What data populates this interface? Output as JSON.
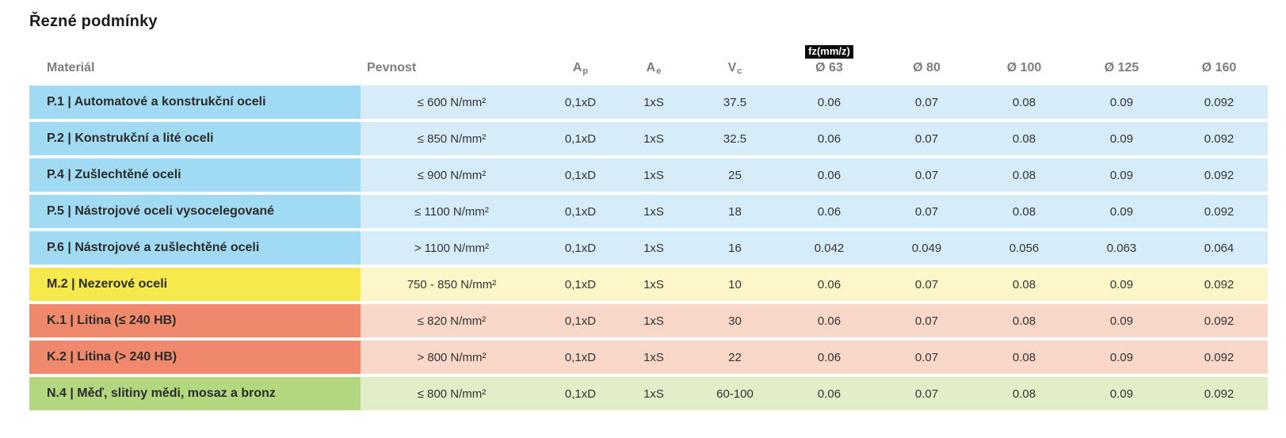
{
  "page": {
    "title": "Řezné podmínky"
  },
  "table": {
    "header": {
      "material": "Materiál",
      "pevnost": "Pevnost",
      "ap": {
        "base": "A",
        "sub": "p"
      },
      "ae": {
        "base": "A",
        "sub": "e"
      },
      "vc": {
        "base": "V",
        "sub": "c"
      },
      "fz_badge": "fz(mm/z)",
      "diameters": [
        "Ø 63",
        "Ø 80",
        "Ø 100",
        "Ø 125",
        "Ø 160"
      ]
    },
    "colors": {
      "steel": {
        "dark": "#a1dbf3",
        "light": "#d6edf9"
      },
      "stainless": {
        "dark": "#f5e94e",
        "light": "#fcf6c8"
      },
      "cast_iron": {
        "dark": "#f0896b",
        "light": "#f9d7c9"
      },
      "nonferrous": {
        "dark": "#b3d77e",
        "light": "#e1eec8"
      }
    },
    "rows": [
      {
        "group": "steel",
        "material": "P.1 | Automatové a konstrukční oceli",
        "pevnost": "≤ 600 N/mm²",
        "ap": "0,1xD",
        "ae": "1xS",
        "vc": "37.5",
        "fz": [
          "0.06",
          "0.07",
          "0.08",
          "0.09",
          "0.092"
        ]
      },
      {
        "group": "steel",
        "material": "P.2 | Konstrukční a lité oceli",
        "pevnost": "≤ 850 N/mm²",
        "ap": "0,1xD",
        "ae": "1xS",
        "vc": "32.5",
        "fz": [
          "0.06",
          "0.07",
          "0.08",
          "0.09",
          "0.092"
        ]
      },
      {
        "group": "steel",
        "material": "P.4 | Zušlechtěné oceli",
        "pevnost": "≤ 900 N/mm²",
        "ap": "0,1xD",
        "ae": "1xS",
        "vc": "25",
        "fz": [
          "0.06",
          "0.07",
          "0.08",
          "0.09",
          "0.092"
        ]
      },
      {
        "group": "steel",
        "material": "P.5 | Nástrojové oceli vysocelegované",
        "pevnost": "≤ 1100 N/mm²",
        "ap": "0,1xD",
        "ae": "1xS",
        "vc": "18",
        "fz": [
          "0.06",
          "0.07",
          "0.08",
          "0.09",
          "0.092"
        ]
      },
      {
        "group": "steel",
        "material": "P.6 | Nástrojové a zušlechtěné oceli",
        "pevnost": "> 1100 N/mm²",
        "ap": "0,1xD",
        "ae": "1xS",
        "vc": "16",
        "fz": [
          "0.042",
          "0.049",
          "0.056",
          "0.063",
          "0.064"
        ]
      },
      {
        "group": "stainless",
        "material": "M.2 | Nezerové oceli",
        "pevnost": "750 - 850 N/mm²",
        "ap": "0,1xD",
        "ae": "1xS",
        "vc": "10",
        "fz": [
          "0.06",
          "0.07",
          "0.08",
          "0.09",
          "0.092"
        ]
      },
      {
        "group": "cast_iron",
        "material": "K.1 | Litina (≤ 240 HB)",
        "pevnost": "≤ 820 N/mm²",
        "ap": "0,1xD",
        "ae": "1xS",
        "vc": "30",
        "fz": [
          "0.06",
          "0.07",
          "0.08",
          "0.09",
          "0.092"
        ]
      },
      {
        "group": "cast_iron",
        "material": "K.2 | Litina (> 240 HB)",
        "pevnost": "> 800 N/mm²",
        "ap": "0,1xD",
        "ae": "1xS",
        "vc": "22",
        "fz": [
          "0.06",
          "0.07",
          "0.08",
          "0.09",
          "0.092"
        ]
      },
      {
        "group": "nonferrous",
        "material": "N.4 | Měď, slitiny mědi, mosaz a bronz",
        "pevnost": "≤ 800 N/mm²",
        "ap": "0,1xD",
        "ae": "1xS",
        "vc": "60-100",
        "fz": [
          "0.06",
          "0.07",
          "0.08",
          "0.09",
          "0.092"
        ]
      }
    ]
  }
}
